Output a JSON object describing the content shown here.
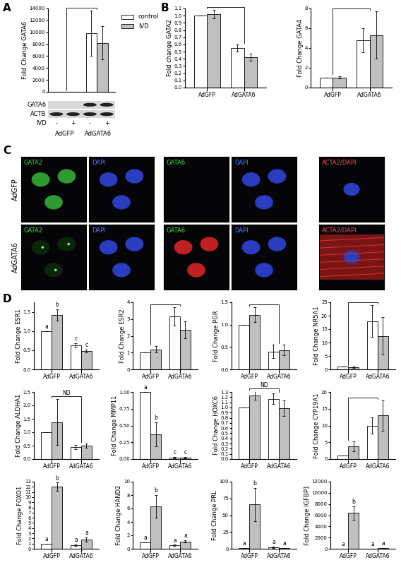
{
  "panel_labels": [
    "A",
    "B",
    "C",
    "D"
  ],
  "chart_data": [
    {
      "type": "bar",
      "ylabel": "Fold Change GATA6",
      "categories": [
        "AdGFP",
        "AdGATA6"
      ],
      "legend": "upper left",
      "tick_labels": "y",
      "ylim": [
        0,
        14000
      ],
      "yticks": [
        0,
        2000,
        4000,
        6000,
        8000,
        10000,
        12000,
        14000
      ],
      "series": [
        {
          "name": "control",
          "color": "#ffffff",
          "values": [
            1,
            9800
          ],
          "errors": [
            0,
            3800
          ]
        },
        {
          "name": "IVD",
          "color": "#c0c0c0",
          "values": [
            1,
            8200
          ],
          "errors": [
            0,
            2800
          ]
        }
      ]
    },
    {
      "type": "bar",
      "ylabel": "Fold change GATA2",
      "categories": [
        "AdGFP",
        "AdGATA6"
      ],
      "ylim": [
        0,
        1.1
      ],
      "yticks": [
        0.0,
        0.1,
        0.2,
        0.3,
        0.4,
        0.5,
        0.6,
        0.7,
        0.8,
        0.9,
        1.0,
        1.1
      ],
      "series": [
        {
          "color": "#ffffff",
          "values": [
            1.0,
            0.55
          ],
          "errors": [
            0,
            0.05
          ]
        },
        {
          "color": "#c0c0c0",
          "values": [
            1.02,
            0.42
          ],
          "errors": [
            0.06,
            0.05
          ]
        }
      ]
    },
    {
      "type": "bar",
      "ylabel": "Fold Change GATA4",
      "categories": [
        "AdGFP",
        "AdGATA6"
      ],
      "ylim": [
        0,
        8
      ],
      "yticks": [
        0,
        2,
        4,
        6,
        8
      ],
      "series": [
        {
          "color": "#ffffff",
          "values": [
            1.0,
            4.8
          ],
          "errors": [
            0,
            1.2
          ]
        },
        {
          "color": "#c0c0c0",
          "values": [
            1.02,
            5.3
          ],
          "errors": [
            0.1,
            2.4
          ]
        }
      ]
    },
    {
      "type": "bar",
      "ylabel": "Fold Change ESR1",
      "categories": [
        "AdGFP",
        "AdGATA6"
      ],
      "ylim": [
        0,
        1.75
      ],
      "yticks": [
        0.0,
        0.5,
        1.0,
        1.5
      ],
      "series": [
        {
          "color": "#ffffff",
          "values": [
            1.0,
            0.63
          ],
          "errors": [
            0,
            0.06
          ],
          "annotations": [
            "a",
            "c"
          ]
        },
        {
          "color": "#c0c0c0",
          "values": [
            1.42,
            0.48
          ],
          "errors": [
            0.15,
            0.04
          ],
          "annotations": [
            "b",
            "c"
          ]
        }
      ]
    },
    {
      "type": "bar",
      "ylabel": "Fold Change ESR2",
      "categories": [
        "AdGFP",
        "AdGATA6"
      ],
      "ylim": [
        0,
        4
      ],
      "yticks": [
        0,
        1,
        2,
        3,
        4
      ],
      "series": [
        {
          "color": "#ffffff",
          "values": [
            1.0,
            3.15
          ],
          "errors": [
            0,
            0.55
          ]
        },
        {
          "color": "#c0c0c0",
          "values": [
            1.2,
            2.35
          ],
          "errors": [
            0.2,
            0.5
          ]
        }
      ]
    },
    {
      "type": "bar",
      "ylabel": "Fold Change PGR",
      "categories": [
        "AdGFP",
        "AdGATA6"
      ],
      "ylim": [
        0,
        1.5
      ],
      "yticks": [
        0.0,
        0.5,
        1.0,
        1.5
      ],
      "series": [
        {
          "color": "#ffffff",
          "values": [
            1.0,
            0.4
          ],
          "errors": [
            0,
            0.15
          ]
        },
        {
          "color": "#c0c0c0",
          "values": [
            1.22,
            0.43
          ],
          "errors": [
            0.17,
            0.12
          ]
        }
      ]
    },
    {
      "type": "bar",
      "ylabel": "Fold Change NR5A1",
      "categories": [
        "AdGFP",
        "AdGATA6"
      ],
      "ylim": [
        0,
        25
      ],
      "yticks": [
        0,
        5,
        10,
        15,
        20,
        25
      ],
      "series": [
        {
          "color": "#ffffff",
          "values": [
            1.0,
            18
          ],
          "errors": [
            0,
            6
          ]
        },
        {
          "color": "#c0c0c0",
          "values": [
            0.8,
            12.5
          ],
          "errors": [
            0.3,
            7
          ]
        }
      ]
    },
    {
      "type": "bar",
      "ylabel": "Fold Change ALDHA1",
      "categories": [
        "AdGFP",
        "AdGATA6"
      ],
      "annotation": "ND",
      "ylim": [
        0,
        2.5
      ],
      "yticks": [
        0.0,
        0.5,
        1.0,
        1.5,
        2.0,
        2.5
      ],
      "series": [
        {
          "color": "#ffffff",
          "values": [
            1.0,
            0.45
          ],
          "errors": [
            0,
            0.08
          ]
        },
        {
          "color": "#c0c0c0",
          "values": [
            1.38,
            0.5
          ],
          "errors": [
            0.85,
            0.08
          ]
        }
      ]
    },
    {
      "type": "bar",
      "ylabel": "Fold Change MMP11",
      "categories": [
        "AdGFP",
        "AdGATA6"
      ],
      "ylim": [
        0,
        1.0
      ],
      "yticks": [
        {
          "value": 0,
          "label": "0.00"
        },
        0.25,
        {
          "value": 0.5,
          "label": "0.50"
        },
        0.75,
        {
          "value": 1.0,
          "label": "1.00"
        }
      ],
      "series": [
        {
          "color": "#ffffff",
          "values": [
            1.0,
            0.02
          ],
          "errors": [
            0,
            0.01
          ],
          "annotations": [
            "a",
            "c"
          ]
        },
        {
          "color": "#c0c0c0",
          "values": [
            0.37,
            0.02
          ],
          "errors": [
            0.18,
            0.01
          ],
          "annotations": [
            "b",
            "c"
          ]
        }
      ]
    },
    {
      "type": "bar",
      "ylabel": "Fold Change HOXC6",
      "categories": [
        "AdGFP",
        "AdGATA6"
      ],
      "annotation": "ND",
      "ylim": [
        0,
        1.3
      ],
      "yticks": [
        0.0,
        0.1,
        0.2,
        0.3,
        0.4,
        0.5,
        0.6,
        0.7,
        0.8,
        0.9,
        1.0,
        1.1,
        1.2,
        1.3
      ],
      "series": [
        {
          "color": "#ffffff",
          "values": [
            1.0,
            1.17
          ],
          "errors": [
            0,
            0.1
          ]
        },
        {
          "color": "#c0c0c0",
          "values": [
            1.23,
            0.98
          ],
          "errors": [
            0.08,
            0.15
          ]
        }
      ]
    },
    {
      "type": "bar",
      "ylabel": "Fold Change CYP19A1",
      "categories": [
        "AdGFP",
        "AdGATA6"
      ],
      "ylim": [
        0,
        20
      ],
      "yticks": [
        0,
        5,
        10,
        15,
        20
      ],
      "series": [
        {
          "color": "#ffffff",
          "values": [
            1.0,
            10
          ],
          "errors": [
            0,
            2.5
          ]
        },
        {
          "color": "#c0c0c0",
          "values": [
            3.8,
            13
          ],
          "errors": [
            1.5,
            4.5
          ]
        }
      ]
    },
    {
      "type": "bar",
      "ylabel": "Fold Change FOXO1",
      "categories": [
        "AdGFP",
        "AdGATA6"
      ],
      "ylim": [
        0,
        13
      ],
      "yticks": [
        0,
        1,
        2,
        3,
        4,
        5,
        6,
        7,
        8,
        9,
        10,
        11,
        12,
        13
      ],
      "series": [
        {
          "color": "#ffffff",
          "values": [
            1.0,
            0.7
          ],
          "errors": [
            0,
            0.15
          ],
          "annotations": [
            "a",
            "a"
          ]
        },
        {
          "color": "#c0c0c0",
          "values": [
            12,
            1.8
          ],
          "errors": [
            0.8,
            0.4
          ],
          "annotations": [
            "b",
            "a"
          ]
        }
      ]
    },
    {
      "type": "bar",
      "ylabel": "Fold Change HAND2",
      "categories": [
        "AdGFP",
        "AdGATA6"
      ],
      "ylim": [
        0,
        10
      ],
      "yticks": [
        0,
        2,
        4,
        6,
        8,
        10
      ],
      "series": [
        {
          "color": "#ffffff",
          "values": [
            1.0,
            0.5
          ],
          "errors": [
            0,
            0.08
          ],
          "annotations": [
            "a",
            "a"
          ]
        },
        {
          "color": "#c0c0c0",
          "values": [
            6.3,
            1.1
          ],
          "errors": [
            1.7,
            0.15
          ],
          "annotations": [
            "b",
            "a"
          ]
        }
      ]
    },
    {
      "type": "bar",
      "ylabel": "Fold Change PRL",
      "categories": [
        "AdGFP",
        "AdGATA6"
      ],
      "ylim": [
        0,
        100
      ],
      "yticks": [
        0,
        25,
        50,
        75,
        100
      ],
      "series": [
        {
          "color": "#ffffff",
          "values": [
            1.0,
            2.5
          ],
          "errors": [
            0,
            1.0
          ],
          "annotations": [
            "a",
            "a"
          ]
        },
        {
          "color": "#c0c0c0",
          "values": [
            66,
            0.8
          ],
          "errors": [
            25,
            0.3
          ],
          "annotations": [
            "b",
            "a"
          ]
        }
      ]
    },
    {
      "type": "bar",
      "ylabel": "Fold Change IGFBP1",
      "categories": [
        "AdGFP",
        "AdGATA6"
      ],
      "ylim": [
        0,
        12000
      ],
      "yticks": [
        0,
        2000,
        4000,
        6000,
        8000,
        10000,
        12000
      ],
      "series": [
        {
          "color": "#ffffff",
          "values": [
            1.0,
            0.5
          ],
          "errors": [
            0,
            0.2
          ],
          "annotations": [
            "a",
            "a"
          ]
        },
        {
          "color": "#c0c0c0",
          "values": [
            6400,
            70
          ],
          "errors": [
            1200,
            30
          ],
          "annotations": [
            "b",
            "a"
          ]
        }
      ]
    }
  ],
  "blot": {
    "rows": [
      "GATA6",
      "ACTB"
    ],
    "present": [
      [
        false,
        false,
        true,
        true
      ],
      [
        true,
        true,
        true,
        true
      ]
    ],
    "treatment_label": "IVD",
    "treatment": [
      "-",
      "+",
      "-",
      "+"
    ],
    "groups": [
      "AdGFP",
      "AdGATA6"
    ]
  },
  "micrographs": {
    "rows": [
      "AdGFP",
      "AdGATA6"
    ],
    "columns": [
      {
        "label": "GATA2",
        "color": "#44dd44"
      },
      {
        "label": "DAPI",
        "color": "#5a78ff"
      },
      {
        "label": "GATA6",
        "color": "#44dd44"
      },
      {
        "label": "DAPI",
        "color": "#5a78ff"
      },
      {
        "label": "ACTA2/DAPI",
        "color": "#ff5050"
      }
    ]
  }
}
